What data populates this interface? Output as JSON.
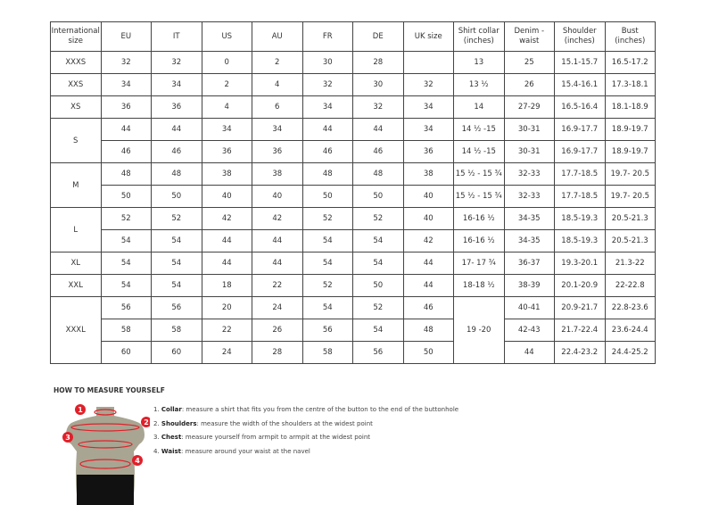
{
  "table": {
    "headers": [
      "International size",
      "EU",
      "IT",
      "US",
      "AU",
      "FR",
      "DE",
      "UK size",
      "Shirt collar (inches)",
      "Denim - waist",
      "Shoulder (inches)",
      "Bust (inches)"
    ],
    "groups": [
      {
        "size": "XXXS",
        "rows": [
          [
            "32",
            "32",
            "0",
            "2",
            "30",
            "28",
            "",
            "13",
            "25",
            "15.1-15.7",
            "16.5-17.2"
          ]
        ]
      },
      {
        "size": "XXS",
        "rows": [
          [
            "34",
            "34",
            "2",
            "4",
            "32",
            "30",
            "32",
            "13 ½",
            "26",
            "15.4-16.1",
            "17.3-18.1"
          ]
        ]
      },
      {
        "size": "XS",
        "rows": [
          [
            "36",
            "36",
            "4",
            "6",
            "34",
            "32",
            "34",
            "14",
            "27-29",
            "16.5-16.4",
            "18.1-18.9"
          ]
        ]
      },
      {
        "size": "S",
        "rows": [
          [
            "44",
            "44",
            "34",
            "34",
            "44",
            "44",
            "34",
            "14 ½ -15",
            "30-31",
            "16.9-17.7",
            "18.9-19.7"
          ],
          [
            "46",
            "46",
            "36",
            "36",
            "46",
            "46",
            "36",
            "14 ½ -15",
            "30-31",
            "16.9-17.7",
            "18.9-19.7"
          ]
        ]
      },
      {
        "size": "M",
        "rows": [
          [
            "48",
            "48",
            "38",
            "38",
            "48",
            "48",
            "38",
            "15 ½ - 15 ¾",
            "32-33",
            "17.7-18.5",
            "19.7- 20.5"
          ],
          [
            "50",
            "50",
            "40",
            "40",
            "50",
            "50",
            "40",
            "15 ½ - 15 ¾",
            "32-33",
            "17.7-18.5",
            "19.7- 20.5"
          ]
        ]
      },
      {
        "size": "L",
        "rows": [
          [
            "52",
            "52",
            "42",
            "42",
            "52",
            "52",
            "40",
            "16-16 ½",
            "34-35",
            "18.5-19.3",
            "20.5-21.3"
          ],
          [
            "54",
            "54",
            "44",
            "44",
            "54",
            "54",
            "42",
            "16-16 ½",
            "34-35",
            "18.5-19.3",
            "20.5-21.3"
          ]
        ]
      },
      {
        "size": "XL",
        "rows": [
          [
            "54",
            "54",
            "44",
            "44",
            "54",
            "54",
            "44",
            "17- 17 ¾",
            "36-37",
            "19.3-20.1",
            "21.3-22"
          ]
        ]
      },
      {
        "size": "XXL",
        "rows": [
          [
            "54",
            "54",
            "18",
            "22",
            "52",
            "50",
            "44",
            "18-18 ½",
            "38-39",
            "20.1-20.9",
            "22-22.8"
          ]
        ]
      },
      {
        "size": "XXXL",
        "collar": "19 -20",
        "rows": [
          [
            "56",
            "56",
            "20",
            "24",
            "54",
            "52",
            "46",
            "",
            "40-41",
            "20.9-21.7",
            "22.8-23.6"
          ],
          [
            "58",
            "58",
            "22",
            "26",
            "56",
            "54",
            "48",
            "",
            "42-43",
            "21.7-22.4",
            "23.6-24.4"
          ],
          [
            "60",
            "60",
            "24",
            "28",
            "58",
            "56",
            "50",
            "",
            "44",
            "22.4-23.2",
            "24.4-25.2"
          ]
        ]
      }
    ]
  },
  "howto": {
    "title": "HOW TO MEASURE YOURSELF",
    "steps": [
      {
        "n": "1.",
        "term": "Collar",
        "text": ": measure a shirt that fits you from the centre of the button to the end of the buttonhole"
      },
      {
        "n": "2.",
        "term": "Shoulders",
        "text": ": measure the width of the shoulders at the widest point"
      },
      {
        "n": "3.",
        "term": "Chest",
        "text": ": measure yourself from armpit to armpit at the widest point"
      },
      {
        "n": "4.",
        "term": "Waist",
        "text": ": measure around your waist at the navel"
      }
    ],
    "markers": [
      "1",
      "2",
      "3",
      "4"
    ]
  },
  "colors": {
    "marker": "#e0202a",
    "torso": "#a8a592",
    "shorts": "#111111"
  }
}
